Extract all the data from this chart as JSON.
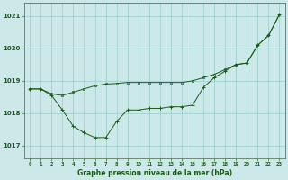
{
  "title": "Graphe pression niveau de la mer (hPa)",
  "background_color": "#cce8e8",
  "grid_color": "#99cccc",
  "line_color": "#1a5c1a",
  "xlim": [
    -0.5,
    23.5
  ],
  "ylim": [
    1016.6,
    1021.4
  ],
  "yticks": [
    1017,
    1018,
    1019,
    1020,
    1021
  ],
  "xtick_labels": [
    "0",
    "1",
    "2",
    "3",
    "4",
    "5",
    "6",
    "7",
    "8",
    "9",
    "10",
    "11",
    "12",
    "13",
    "14",
    "15",
    "16",
    "17",
    "18",
    "19",
    "20",
    "21",
    "22",
    "23"
  ],
  "series1_x": [
    0,
    1,
    2,
    3,
    4,
    5,
    6,
    7,
    8,
    9,
    10,
    11,
    12,
    13,
    14,
    15,
    16,
    17,
    18,
    19,
    20,
    21,
    22,
    23
  ],
  "series1_y": [
    1018.75,
    1018.75,
    1018.55,
    1018.1,
    1017.6,
    1017.4,
    1017.25,
    1017.25,
    1017.75,
    1018.1,
    1018.1,
    1018.15,
    1018.15,
    1018.2,
    1018.2,
    1018.25,
    1018.8,
    1019.1,
    1019.3,
    1019.5,
    1019.55,
    1020.1,
    1020.4,
    1021.05
  ],
  "series2_x": [
    0,
    1,
    2,
    3,
    4,
    5,
    6,
    7,
    8,
    9,
    10,
    11,
    12,
    13,
    14,
    15,
    16,
    17,
    18,
    19,
    20,
    21,
    22,
    23
  ],
  "series2_y": [
    1018.75,
    1018.75,
    1018.6,
    1018.55,
    1018.65,
    1018.75,
    1018.85,
    1018.9,
    1018.92,
    1018.95,
    1018.95,
    1018.95,
    1018.95,
    1018.95,
    1018.95,
    1019.0,
    1019.1,
    1019.2,
    1019.35,
    1019.5,
    1019.55,
    1020.1,
    1020.4,
    1021.05
  ]
}
